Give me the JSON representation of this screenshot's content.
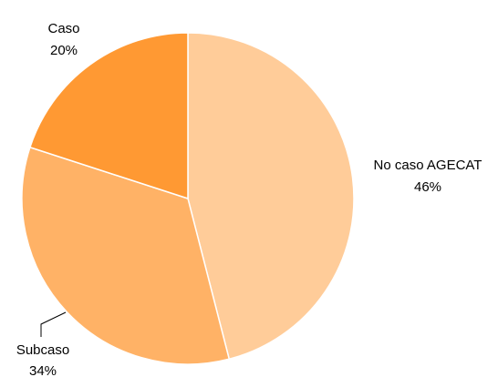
{
  "chart_data": {
    "type": "pie",
    "slices": [
      {
        "label": "No caso AGECAT",
        "value": 46,
        "value_label": "46%",
        "color": "#ffcc99"
      },
      {
        "label": "Subcaso",
        "value": 34,
        "value_label": "34%",
        "color": "#ffb266"
      },
      {
        "label": "Caso",
        "value": 20,
        "value_label": "20%",
        "color": "#ff9933"
      }
    ],
    "legend": "none",
    "labels": "outside"
  }
}
